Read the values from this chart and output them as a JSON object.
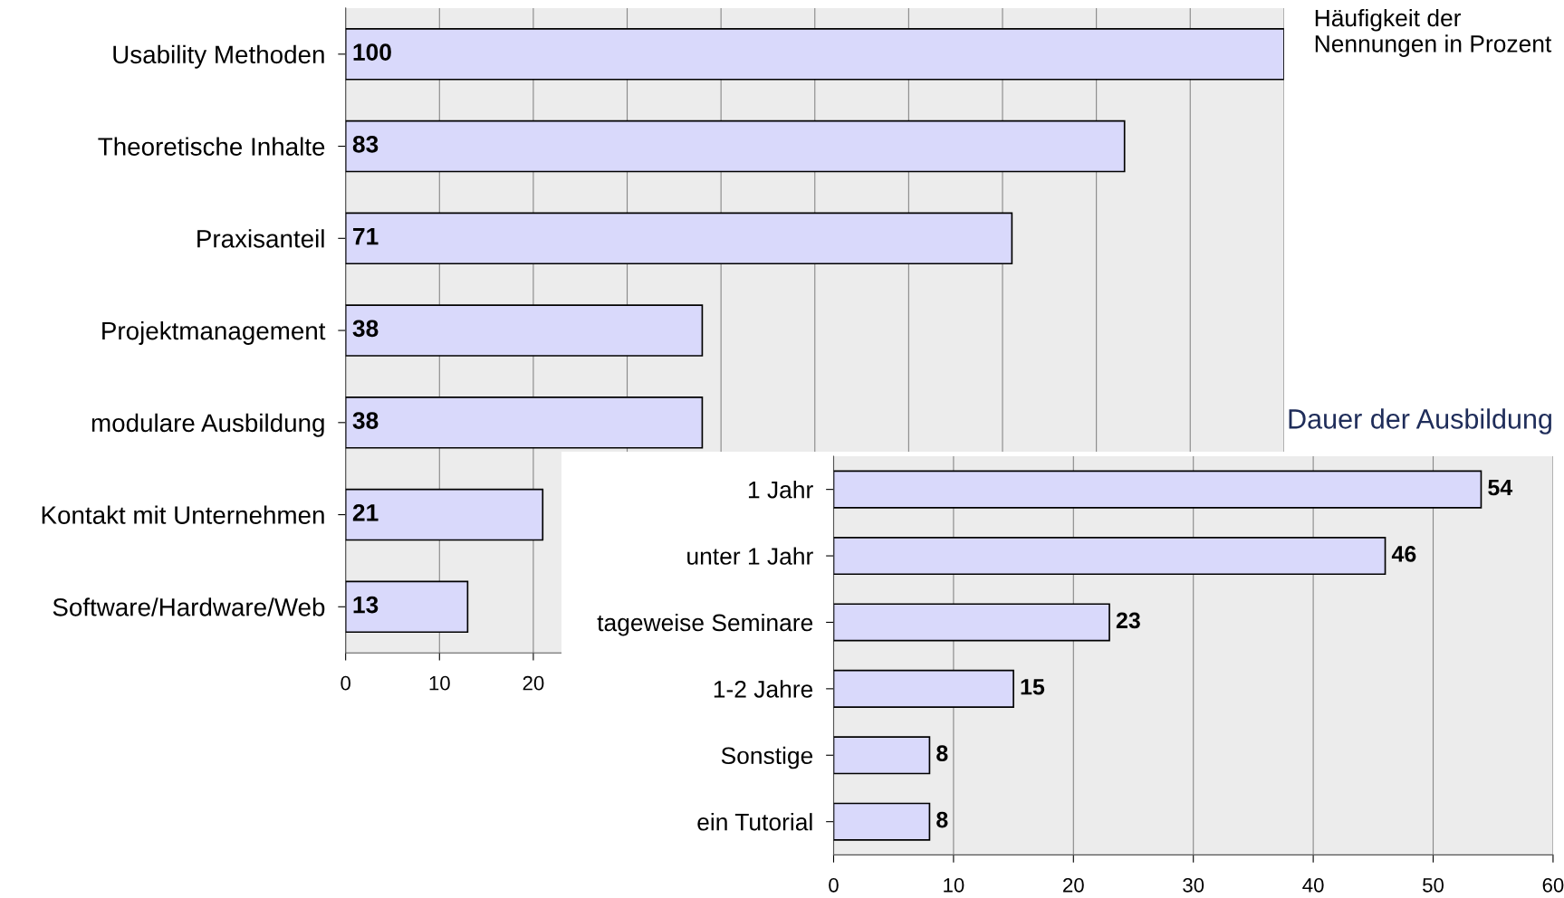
{
  "chart_data": [
    {
      "type": "bar",
      "orientation": "horizontal",
      "categories": [
        "Usability Methoden",
        "Theoretische Inhalte",
        "Praxisanteil",
        "Projektmanagement",
        "modulare Ausbildung",
        "Kontakt mit Unternehmen",
        "Software/Hardware/Web"
      ],
      "values": [
        100,
        83,
        71,
        38,
        38,
        21,
        13
      ],
      "color": "#d9d9fb",
      "xlim": [
        0,
        100
      ],
      "xticks": [
        0,
        10,
        20,
        {
          "value": 30,
          "label": null
        },
        {
          "value": 40,
          "label": null
        },
        {
          "value": 50,
          "label": null
        },
        {
          "value": 60,
          "label": null
        },
        {
          "value": 70,
          "label": null
        },
        {
          "value": 80,
          "label": null
        },
        {
          "value": 90,
          "label": null
        },
        {
          "value": 100,
          "label": null
        }
      ],
      "grid": "x",
      "data_labels": true,
      "annotations": [
        "Häufigkeit der Nennungen in Prozent"
      ]
    },
    {
      "type": "bar",
      "orientation": "horizontal",
      "title": "Dauer der Ausbildung",
      "categories": [
        "1 Jahr",
        "unter 1 Jahr",
        "tageweise Seminare",
        "1-2 Jahre",
        "Sonstige",
        "ein Tutorial"
      ],
      "values": [
        54,
        46,
        23,
        15,
        8,
        8
      ],
      "color": "#d9d9fb",
      "xlim": [
        0,
        60
      ],
      "xticks": [
        0,
        10,
        20,
        30,
        40,
        50,
        60
      ],
      "grid": "x",
      "data_labels": true
    }
  ]
}
